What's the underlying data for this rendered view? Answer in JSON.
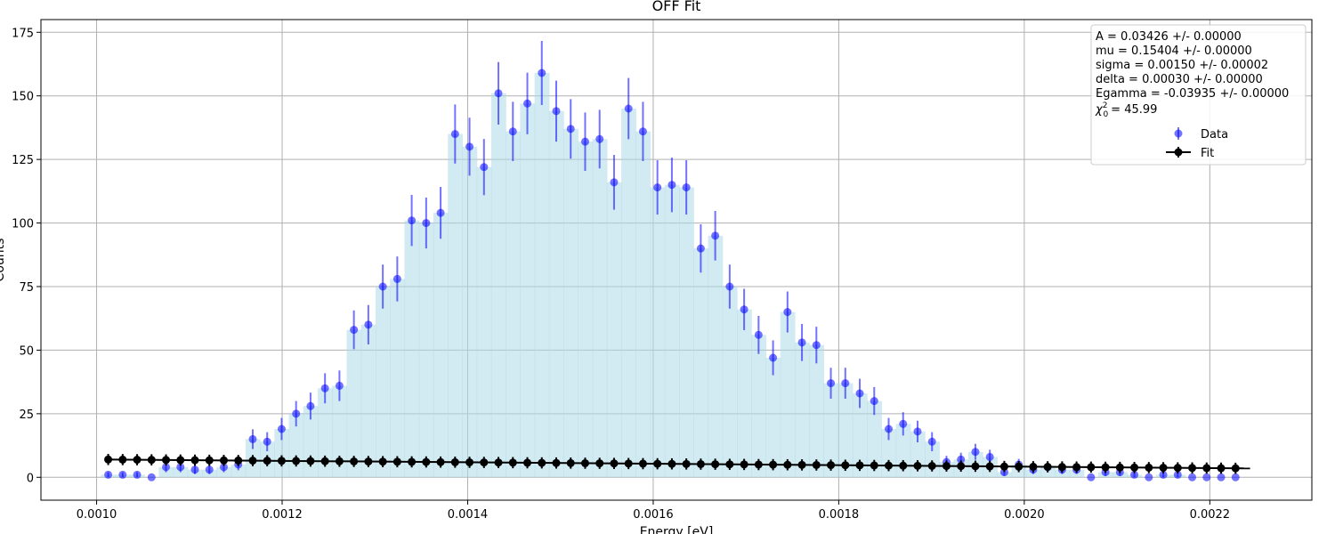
{
  "chart_data": {
    "type": "scatter",
    "title": "OFF Fit",
    "xlabel": "Energy [eV]",
    "ylabel": "Counts",
    "xlim": [
      0.00094,
      0.00231
    ],
    "ylim": [
      -9,
      180
    ],
    "xticks": [
      0.001,
      0.0012,
      0.0014,
      0.0016,
      0.0018,
      0.002,
      0.0022
    ],
    "xtick_labels": [
      "0.0010",
      "0.0012",
      "0.0014",
      "0.0016",
      "0.0018",
      "0.0020",
      "0.0022"
    ],
    "yticks": [
      0,
      25,
      50,
      75,
      100,
      125,
      150,
      175
    ],
    "ytick_labels": [
      "0",
      "25",
      "50",
      "75",
      "100",
      "125",
      "150",
      "175"
    ],
    "grid": true,
    "legend_position": "top-right",
    "colors": {
      "histogram": "#add8e6",
      "data": "#0000ff",
      "fit": "#000000",
      "grid": "#b0b0b0"
    },
    "bins": {
      "start": 0.0010125,
      "step": 1.558e-05,
      "counts": [
        1,
        1,
        1,
        0,
        4,
        4,
        3,
        3,
        4,
        5,
        15,
        14,
        19,
        25,
        28,
        35,
        36,
        58,
        60,
        75,
        78,
        101,
        100,
        104,
        135,
        130,
        122,
        151,
        136,
        147,
        159,
        144,
        137,
        132,
        133,
        116,
        145,
        136,
        114,
        115,
        114,
        90,
        95,
        75,
        66,
        56,
        47,
        65,
        53,
        52,
        37,
        37,
        33,
        30,
        19,
        21,
        18,
        14,
        6,
        7,
        10,
        8,
        2,
        5,
        3,
        4,
        3,
        3,
        0,
        2,
        2,
        1,
        0,
        1,
        1,
        0,
        0,
        0,
        0
      ]
    },
    "series": [
      {
        "name": "Data",
        "kind": "errorbar-points",
        "x_from": "bins",
        "y_from": "bins.counts",
        "yerr": "sqrt"
      },
      {
        "name": "Fit",
        "kind": "line-with-markers",
        "x": [
          0.0010125,
          0.0022434
        ],
        "y": [
          7.0,
          3.5
        ],
        "yerr": 2.2
      }
    ],
    "legend": {
      "stats": [
        "A = 0.03426 +/- 0.00000",
        "mu = 0.15404 +/- 0.00000",
        "sigma = 0.00150 +/- 0.00002",
        "delta = 0.00030 +/- 0.00000",
        "Egamma = -0.03935 +/- 0.00000"
      ],
      "chi_symbol": "χ",
      "chi_sup": "2",
      "chi_sub": "0",
      "chi_value": "= 45.99",
      "entries": [
        "Data",
        "Fit"
      ]
    }
  }
}
